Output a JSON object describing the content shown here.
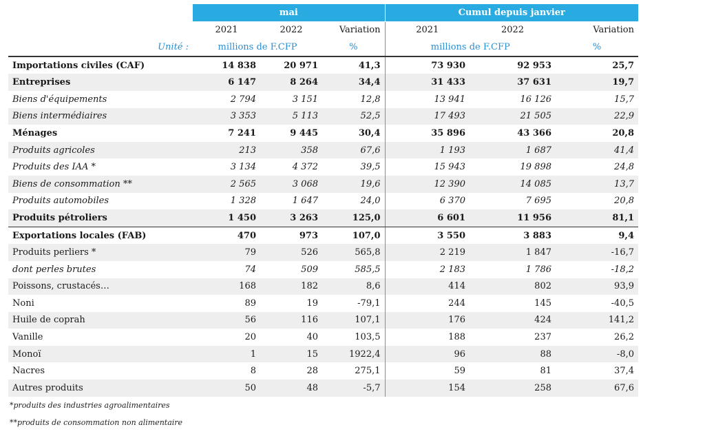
{
  "header": {
    "group_mai": "mai",
    "group_cumul": "Cumul depuis janvier",
    "col_2021": "2021",
    "col_2022": "2022",
    "col_variation": "Variation",
    "unit_label": "Unité :",
    "unit_money": "millions de F.CFP",
    "unit_pct": "%"
  },
  "rows": [
    {
      "label": "Importations civiles (CAF)",
      "v": [
        "14 838",
        "20 971",
        "41,3",
        "73 930",
        "92 953",
        "25,7"
      ]
    },
    {
      "label": "Entreprises",
      "v": [
        "6 147",
        "8 264",
        "34,4",
        "31 433",
        "37 631",
        "19,7"
      ]
    },
    {
      "label": "Biens d'équipements",
      "v": [
        "2 794",
        "3 151",
        "12,8",
        "13 941",
        "16 126",
        "15,7"
      ]
    },
    {
      "label": "Biens intermédiaires",
      "v": [
        "3 353",
        "5 113",
        "52,5",
        "17 493",
        "21 505",
        "22,9"
      ]
    },
    {
      "label": "Ménages",
      "v": [
        "7 241",
        "9 445",
        "30,4",
        "35 896",
        "43 366",
        "20,8"
      ]
    },
    {
      "label": "Produits agricoles",
      "v": [
        "213",
        "358",
        "67,6",
        "1 193",
        "1 687",
        "41,4"
      ]
    },
    {
      "label": "Produits des IAA *",
      "v": [
        "3 134",
        "4 372",
        "39,5",
        "15 943",
        "19 898",
        "24,8"
      ]
    },
    {
      "label": "Biens de consommation **",
      "v": [
        "2 565",
        "3 068",
        "19,6",
        "12 390",
        "14 085",
        "13,7"
      ]
    },
    {
      "label": "Produits automobiles",
      "v": [
        "1 328",
        "1 647",
        "24,0",
        "6 370",
        "7 695",
        "20,8"
      ]
    },
    {
      "label": "Produits pétroliers",
      "v": [
        "1 450",
        "3 263",
        "125,0",
        "6 601",
        "11 956",
        "81,1"
      ]
    },
    {
      "label": "Exportations locales (FAB)",
      "v": [
        "470",
        "973",
        "107,0",
        "3 550",
        "3 883",
        "9,4"
      ]
    },
    {
      "label": "Produits perliers *",
      "v": [
        "79",
        "526",
        "565,8",
        "2 219",
        "1 847",
        "-16,7"
      ]
    },
    {
      "label": "dont perles brutes",
      "v": [
        "74",
        "509",
        "585,5",
        "2 183",
        "1 786",
        "-18,2"
      ]
    },
    {
      "label": "Poissons, crustacés…",
      "v": [
        "168",
        "182",
        "8,6",
        "414",
        "802",
        "93,9"
      ]
    },
    {
      "label": "Noni",
      "v": [
        "89",
        "19",
        "-79,1",
        "244",
        "145",
        "-40,5"
      ]
    },
    {
      "label": "Huile de coprah",
      "v": [
        "56",
        "116",
        "107,1",
        "176",
        "424",
        "141,2"
      ]
    },
    {
      "label": "Vanille",
      "v": [
        "20",
        "40",
        "103,5",
        "188",
        "237",
        "26,2"
      ]
    },
    {
      "label": "Monoï",
      "v": [
        "1",
        "15",
        "1922,4",
        "96",
        "88",
        "-8,0"
      ]
    },
    {
      "label": "Nacres",
      "v": [
        "8",
        "28",
        "275,1",
        "59",
        "81",
        "37,4"
      ]
    },
    {
      "label": "Autres produits",
      "v": [
        "50",
        "48",
        "-5,7",
        "154",
        "258",
        "67,6"
      ]
    }
  ],
  "footnotes": {
    "note1": "*produits des industries agroalimentaires",
    "note2": "**produits de consommation non alimentaire"
  }
}
